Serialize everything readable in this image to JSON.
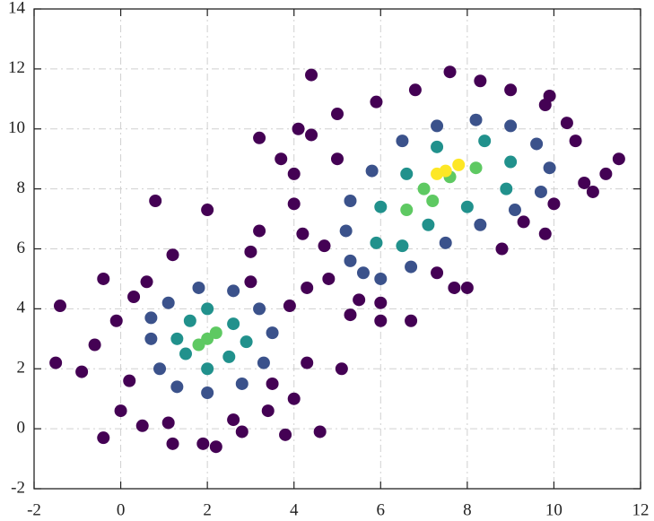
{
  "chart_data": {
    "type": "scatter",
    "xlim": [
      -2,
      12
    ],
    "ylim": [
      -2,
      14
    ],
    "xticks": [
      -2,
      0,
      2,
      4,
      6,
      8,
      10,
      12
    ],
    "yticks": [
      -2,
      0,
      2,
      4,
      6,
      8,
      10,
      12,
      14
    ],
    "grid": true,
    "series": [
      {
        "color": "#440154",
        "x": [
          -1.5,
          -1.4,
          -0.4,
          -0.4,
          0.8,
          2.0,
          3.2,
          4.4,
          4.6,
          5.1,
          11.5,
          11.2,
          8.0,
          7.7,
          6.7,
          3.8,
          1.9,
          2.2,
          1.2,
          -0.9,
          -0.6,
          0.0,
          4.3,
          4.0,
          3.0,
          0.6,
          1.2,
          3.0,
          3.2,
          4.0,
          3.7,
          4.1,
          4.4,
          5.0,
          5.9,
          6.8,
          7.6,
          8.3,
          9.0,
          9.9,
          10.3,
          10.5,
          10.7,
          10.9,
          9.8,
          8.8,
          9.3,
          7.3,
          6.0,
          5.5,
          4.8,
          5.3,
          4.3,
          4.7,
          4.2,
          4.0,
          5.0,
          6.0,
          2.6,
          1.1,
          0.2,
          -0.1,
          0.3,
          3.5,
          3.9,
          3.4,
          0.5,
          9.8,
          10.0,
          2.8
        ],
        "values": [
          2.2,
          4.1,
          -0.3,
          5.0,
          7.6,
          7.3,
          9.7,
          11.8,
          -0.1,
          2.0,
          9.0,
          8.5,
          4.7,
          4.7,
          3.6,
          -0.2,
          -0.5,
          -0.6,
          -0.5,
          1.9,
          2.8,
          0.6,
          2.2,
          1.0,
          4.9,
          4.9,
          5.8,
          5.9,
          6.6,
          7.5,
          9.0,
          10.0,
          9.8,
          10.5,
          10.9,
          11.3,
          11.9,
          11.6,
          11.3,
          11.1,
          10.2,
          9.6,
          8.2,
          7.9,
          6.5,
          6.0,
          6.9,
          5.2,
          3.6,
          4.3,
          5.0,
          3.8,
          4.7,
          6.1,
          6.5,
          8.5,
          9.0,
          4.2,
          0.3,
          0.2,
          1.6,
          3.6,
          4.4,
          1.5,
          4.1,
          0.6,
          0.1,
          10.8,
          7.5,
          -0.1
        ]
      },
      {
        "color": "#3b528b",
        "x": [
          0.7,
          0.9,
          1.3,
          2.0,
          2.8,
          3.3,
          3.5,
          3.2,
          2.6,
          1.8,
          1.1,
          0.7,
          5.3,
          5.2,
          5.3,
          5.8,
          6.5,
          7.3,
          8.2,
          9.0,
          9.6,
          9.9,
          9.7,
          9.1,
          8.3,
          7.5,
          6.7,
          6.0,
          5.6
        ],
        "values": [
          3.0,
          2.0,
          1.4,
          1.2,
          1.5,
          2.2,
          3.2,
          4.0,
          4.6,
          4.7,
          4.2,
          3.7,
          5.6,
          6.6,
          7.6,
          8.6,
          9.6,
          10.1,
          10.3,
          10.1,
          9.5,
          8.7,
          7.9,
          7.3,
          6.8,
          6.2,
          5.4,
          5.0,
          5.2
        ]
      },
      {
        "color": "#21918c",
        "x": [
          1.5,
          2.5,
          2.6,
          1.6,
          1.3,
          2.0,
          2.9,
          2.0,
          5.9,
          6.0,
          6.6,
          7.3,
          8.4,
          9.0,
          8.9,
          8.0,
          7.1,
          6.5
        ],
        "values": [
          2.5,
          2.4,
          3.5,
          3.6,
          3.0,
          2.0,
          2.9,
          4.0,
          6.2,
          7.4,
          8.5,
          9.4,
          9.6,
          8.9,
          8.0,
          7.4,
          6.8,
          6.1
        ]
      },
      {
        "color": "#5ec962",
        "x": [
          2.0,
          2.2,
          1.8,
          6.6,
          7.0,
          7.6,
          8.2,
          7.2
        ],
        "values": [
          3.0,
          3.2,
          2.8,
          7.3,
          8.0,
          8.4,
          8.7,
          7.6
        ]
      },
      {
        "color": "#fde725",
        "x": [
          7.5,
          7.8,
          7.3
        ],
        "values": [
          8.6,
          8.8,
          8.5
        ]
      }
    ]
  }
}
